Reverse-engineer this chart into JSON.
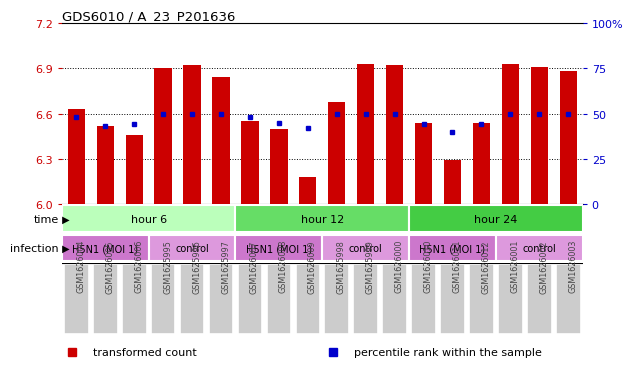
{
  "title": "GDS6010 / A_23_P201636",
  "samples": [
    "GSM1626004",
    "GSM1626005",
    "GSM1626006",
    "GSM1625995",
    "GSM1625996",
    "GSM1625997",
    "GSM1626007",
    "GSM1626008",
    "GSM1626009",
    "GSM1625998",
    "GSM1625999",
    "GSM1626000",
    "GSM1626010",
    "GSM1626011",
    "GSM1626012",
    "GSM1626001",
    "GSM1626002",
    "GSM1626003"
  ],
  "bar_values": [
    6.63,
    6.52,
    6.46,
    6.9,
    6.92,
    6.84,
    6.55,
    6.5,
    6.18,
    6.68,
    6.93,
    6.92,
    6.54,
    6.29,
    6.54,
    6.93,
    6.91,
    6.88
  ],
  "dot_values": [
    48,
    43,
    44,
    50,
    50,
    50,
    48,
    45,
    42,
    50,
    50,
    50,
    44,
    40,
    44,
    50,
    50,
    50
  ],
  "bar_color": "#cc0000",
  "dot_color": "#0000cc",
  "ymin": 6.0,
  "ymax": 7.2,
  "yticks": [
    6.0,
    6.3,
    6.6,
    6.9,
    7.2
  ],
  "right_yticks": [
    0,
    25,
    50,
    75,
    100
  ],
  "right_ylabels": [
    "0",
    "25",
    "50",
    "75",
    "100%"
  ],
  "time_groups": [
    {
      "label": "hour 6",
      "start": 0,
      "end": 6,
      "color": "#bbffbb"
    },
    {
      "label": "hour 12",
      "start": 6,
      "end": 12,
      "color": "#66dd66"
    },
    {
      "label": "hour 24",
      "start": 12,
      "end": 18,
      "color": "#44cc44"
    }
  ],
  "infection_groups": [
    {
      "label": "H5N1 (MOI 1)",
      "start": 0,
      "end": 3,
      "color": "#cc77cc"
    },
    {
      "label": "control",
      "start": 3,
      "end": 6,
      "color": "#dd99dd"
    },
    {
      "label": "H5N1 (MOI 1)",
      "start": 6,
      "end": 9,
      "color": "#cc77cc"
    },
    {
      "label": "control",
      "start": 9,
      "end": 12,
      "color": "#dd99dd"
    },
    {
      "label": "H5N1 (MOI 1)",
      "start": 12,
      "end": 15,
      "color": "#cc77cc"
    },
    {
      "label": "control",
      "start": 15,
      "end": 18,
      "color": "#dd99dd"
    }
  ],
  "legend_items": [
    {
      "label": "transformed count",
      "color": "#cc0000"
    },
    {
      "label": "percentile rank within the sample",
      "color": "#0000cc"
    }
  ],
  "bar_width": 0.6,
  "tick_label_fontsize": 6.5,
  "sample_label_color": "#444444",
  "xticklabel_bg": "#cccccc"
}
